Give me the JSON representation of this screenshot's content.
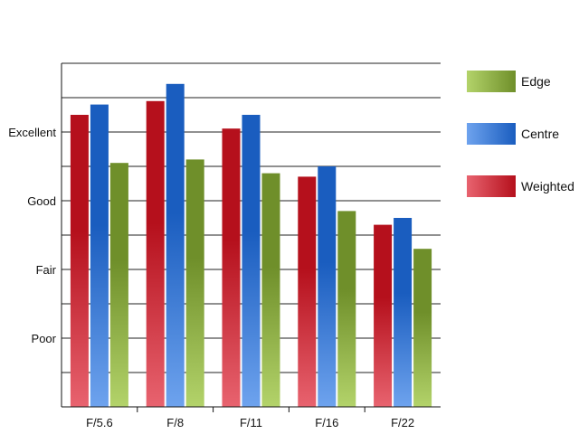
{
  "chart_data": {
    "type": "bar",
    "categories": [
      "F/5.6",
      "F/8",
      "F/11",
      "F/16",
      "F/22"
    ],
    "y_tick_labels": [
      {
        "label": "Poor",
        "value": 2
      },
      {
        "label": "Fair",
        "value": 4
      },
      {
        "label": "Good",
        "value": 6
      },
      {
        "label": "Excellent",
        "value": 8
      }
    ],
    "ylim": [
      0,
      10
    ],
    "grid": true,
    "legend_position": "right",
    "series": [
      {
        "name": "Weighted",
        "values": [
          8.5,
          8.9,
          8.1,
          6.7,
          5.3
        ],
        "color_top": "#b5101c",
        "color_bottom": "#e8636f"
      },
      {
        "name": "Centre",
        "values": [
          8.8,
          9.4,
          8.5,
          7.0,
          5.5
        ],
        "color_top": "#1a5dbf",
        "color_bottom": "#6ea3ee"
      },
      {
        "name": "Edge",
        "values": [
          7.1,
          7.2,
          6.8,
          5.7,
          4.6
        ],
        "color_top": "#6f8f2a",
        "color_bottom": "#b3d36a"
      }
    ],
    "legend_order": [
      "Edge",
      "Centre",
      "Weighted"
    ]
  }
}
